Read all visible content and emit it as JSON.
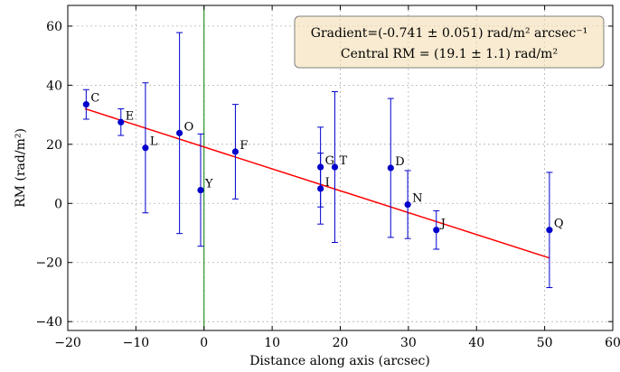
{
  "chart_data": {
    "type": "scatter",
    "xlabel": "Distance along axis (arcsec)",
    "ylabel": "RM (rad/m²)",
    "xlim": [
      -20,
      60
    ],
    "ylim": [
      -43,
      67
    ],
    "xticks": [
      -20,
      -10,
      0,
      10,
      20,
      30,
      40,
      50,
      60
    ],
    "yticks": [
      -40,
      -20,
      0,
      20,
      40,
      60
    ],
    "xtick_labels": [
      "−20",
      "−10",
      "0",
      "10",
      "20",
      "30",
      "40",
      "50",
      "60"
    ],
    "ytick_labels": [
      "−40",
      "−20",
      "0",
      "20",
      "40",
      "60"
    ],
    "grid": true,
    "vertical_line_x": 0,
    "fit": {
      "gradient": -0.741,
      "intercept": 19.1,
      "x_range": [
        -17.5,
        50.7
      ]
    },
    "annotation": {
      "line1": "Gradient=(-0.741 ± 0.051) rad/m² arcsec⁻¹",
      "line2": "Central RM = (19.1 ± 1.1) rad/m²"
    },
    "points": [
      {
        "label": "C",
        "x": -17.3,
        "y": 33.5,
        "err": 5
      },
      {
        "label": "E",
        "x": -12.2,
        "y": 27.5,
        "err": 4.5
      },
      {
        "label": "L",
        "x": -8.6,
        "y": 18.8,
        "err": 22
      },
      {
        "label": "O",
        "x": -3.6,
        "y": 23.8,
        "err": 34
      },
      {
        "label": "Y",
        "x": -0.5,
        "y": 4.5,
        "err": 19
      },
      {
        "label": "F",
        "x": 4.6,
        "y": 17.5,
        "err": 16
      },
      {
        "label": "G",
        "x": 17.1,
        "y": 12.3,
        "err": 13.5
      },
      {
        "label": "I",
        "x": 17.1,
        "y": 5.0,
        "err": 12
      },
      {
        "label": "T",
        "x": 19.2,
        "y": 12.3,
        "err": 25.5
      },
      {
        "label": "D",
        "x": 27.4,
        "y": 12.0,
        "err": 23.5
      },
      {
        "label": "N",
        "x": 29.9,
        "y": -0.4,
        "err": 11.5
      },
      {
        "label": "J",
        "x": 34.1,
        "y": -9.0,
        "err": 6.5
      },
      {
        "label": "Q",
        "x": 50.7,
        "y": -9.0,
        "err": 19.5
      }
    ]
  }
}
